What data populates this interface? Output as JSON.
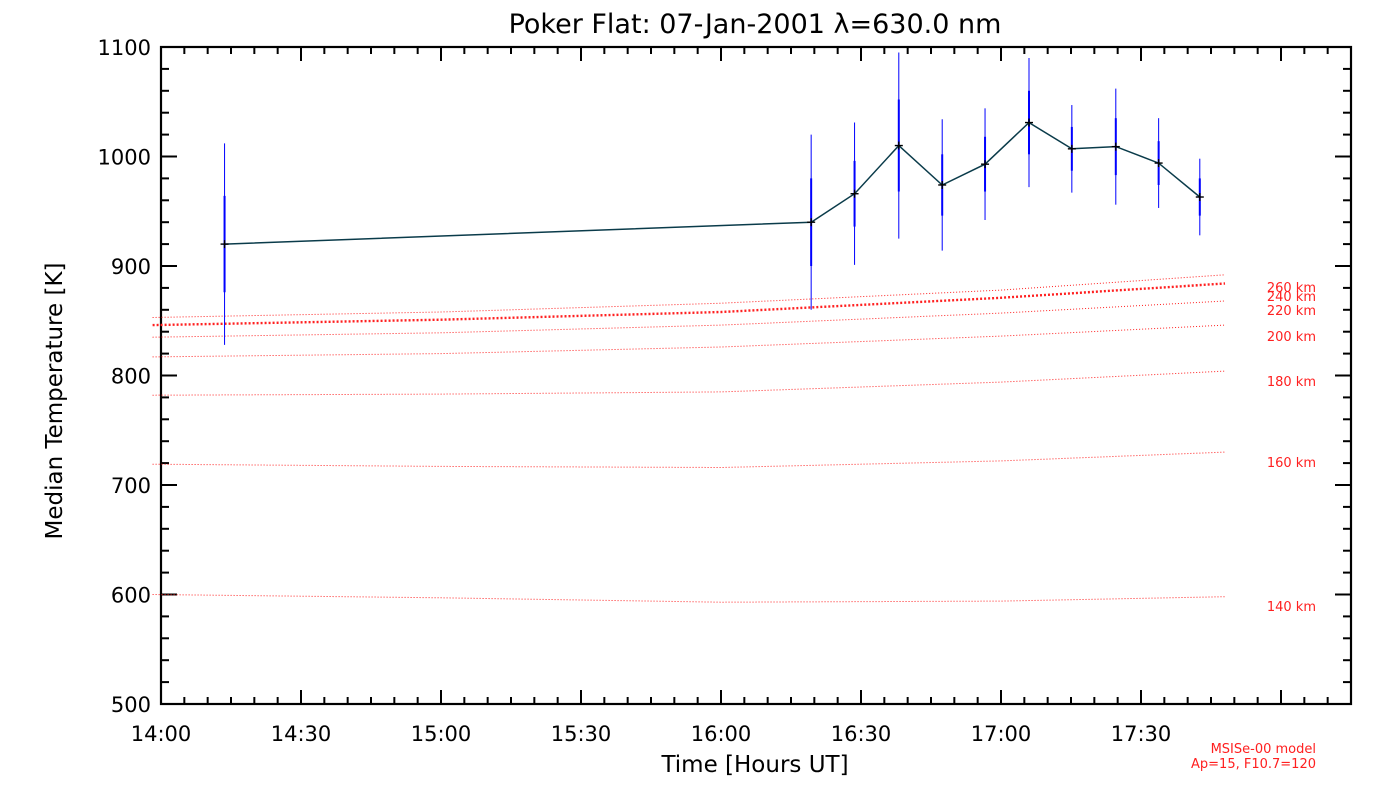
{
  "chart_data": {
    "type": "line",
    "title": "Poker Flat: 07-Jan-2001 λ=630.0 nm",
    "xlabel": "Time [Hours UT]",
    "ylabel": "Median Temperature [K]",
    "xlim": [
      14.0,
      18.25
    ],
    "ylim": [
      500,
      1100
    ],
    "x_ticks": [
      14.0,
      14.5,
      15.0,
      15.5,
      16.0,
      16.5,
      17.0,
      17.5
    ],
    "x_tick_labels": [
      "14:00",
      "14:30",
      "15:00",
      "15:30",
      "16:00",
      "16:30",
      "17:00",
      "17:30"
    ],
    "y_ticks": [
      500,
      600,
      700,
      800,
      900,
      1000,
      1100
    ],
    "y_tick_labels": [
      "500",
      "600",
      "700",
      "800",
      "900",
      "1000",
      "1100"
    ],
    "grid": false,
    "series": [
      {
        "name": "Median Temperature",
        "x": [
          14.227,
          16.322,
          16.477,
          16.635,
          16.79,
          16.943,
          17.1,
          17.253,
          17.41,
          17.563,
          17.71
        ],
        "y": [
          920,
          940,
          966,
          1010,
          974,
          993,
          1031,
          1007,
          1009,
          994,
          963
        ],
        "err_outer": [
          92,
          80,
          65,
          85,
          60,
          51,
          59,
          40,
          53,
          41,
          35
        ],
        "err_inner": [
          44,
          40,
          30,
          42,
          28,
          25,
          29,
          20,
          26,
          20,
          17
        ],
        "color": "#0a3b4a",
        "error_color": "#0000ff"
      }
    ],
    "model_curves": [
      {
        "label": "140 km",
        "x": [
          13.97,
          15.0,
          16.0,
          17.0,
          17.8
        ],
        "y": [
          600,
          597,
          593,
          594,
          598
        ],
        "bold": false
      },
      {
        "label": "160 km",
        "x": [
          13.97,
          15.0,
          16.0,
          17.0,
          17.8
        ],
        "y": [
          719,
          717,
          716,
          722,
          730
        ],
        "bold": false
      },
      {
        "label": "180 km",
        "x": [
          13.97,
          15.0,
          16.0,
          17.0,
          17.8
        ],
        "y": [
          782,
          783,
          785,
          794,
          804
        ],
        "bold": false
      },
      {
        "label": "200 km",
        "x": [
          13.97,
          15.0,
          16.0,
          17.0,
          17.8
        ],
        "y": [
          817,
          820,
          826,
          836,
          846
        ],
        "bold": false
      },
      {
        "label": "220 km",
        "x": [
          13.97,
          15.0,
          16.0,
          17.0,
          17.8
        ],
        "y": [
          835,
          839,
          846,
          857,
          868
        ],
        "bold": false
      },
      {
        "label": "240 km",
        "x": [
          13.97,
          15.0,
          16.0,
          17.0,
          17.8
        ],
        "y": [
          846,
          851,
          858,
          871,
          884
        ],
        "bold": true
      },
      {
        "label": "260 km",
        "x": [
          13.97,
          15.0,
          16.0,
          17.0,
          17.8
        ],
        "y": [
          853,
          858,
          866,
          878,
          892
        ],
        "bold": false
      }
    ],
    "model_color": "#ff2020",
    "model_note": [
      "MSISe-00 model",
      "Ap=15, F10.7=120"
    ]
  }
}
